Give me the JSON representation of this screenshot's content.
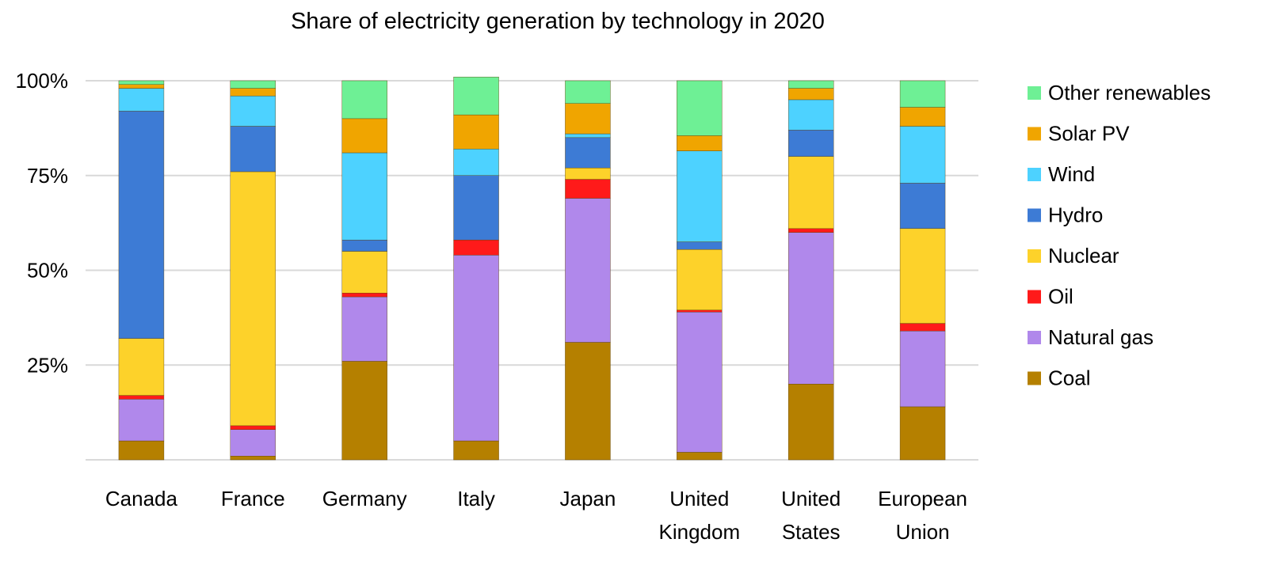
{
  "chart_data": {
    "type": "bar",
    "stacked": true,
    "title": "Share of electricity generation by technology in 2020",
    "xlabel": "",
    "ylabel": "",
    "ylim": [
      0,
      100
    ],
    "yticks": [
      "25%",
      "50%",
      "75%",
      "100%"
    ],
    "ytick_values": [
      25,
      50,
      75,
      100
    ],
    "grid": true,
    "legend_position": "right",
    "categories": [
      [
        "Canada"
      ],
      [
        "France"
      ],
      [
        "Germany"
      ],
      [
        "Italy"
      ],
      [
        "Japan"
      ],
      [
        "United",
        "Kingdom"
      ],
      [
        "United",
        "States"
      ],
      [
        "European",
        "Union"
      ]
    ],
    "series": [
      {
        "name": "Coal",
        "color": "#b58000",
        "values": [
          5,
          1,
          26,
          5,
          31,
          2,
          20,
          14
        ]
      },
      {
        "name": "Natural gas",
        "color": "#b088eb",
        "values": [
          11,
          7,
          17,
          49,
          38,
          37,
          40,
          20
        ]
      },
      {
        "name": "Oil",
        "color": "#ff1a1a",
        "values": [
          1,
          1,
          1,
          4,
          5,
          0.5,
          1,
          2
        ]
      },
      {
        "name": "Nuclear",
        "color": "#fdd22a",
        "values": [
          15,
          67,
          11,
          0,
          3,
          16,
          19,
          25
        ]
      },
      {
        "name": "Hydro",
        "color": "#3d7bd5",
        "values": [
          60,
          12,
          3,
          17,
          8,
          2,
          7,
          12
        ]
      },
      {
        "name": "Wind",
        "color": "#4dd2ff",
        "values": [
          6,
          8,
          23,
          7,
          1,
          24,
          8,
          15
        ]
      },
      {
        "name": "Solar PV",
        "color": "#f0a500",
        "values": [
          1,
          2,
          9,
          9,
          8,
          4,
          3,
          5
        ]
      },
      {
        "name": "Other renewables",
        "color": "#6ef095",
        "values": [
          1,
          2,
          10,
          10,
          6,
          14.5,
          2,
          7
        ]
      }
    ]
  }
}
